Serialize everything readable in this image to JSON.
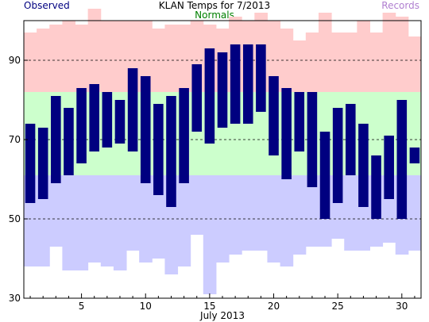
{
  "chart_data": {
    "type": "bar",
    "title": "KLAN Temps for 7/2013",
    "legend": [
      {
        "label": "Observed",
        "color": "#000080",
        "position": "top-left"
      },
      {
        "label": "Normals",
        "color": "#008000",
        "position": "top-center"
      },
      {
        "label": "Records",
        "color": "#b07fd0",
        "position": "top-right"
      }
    ],
    "xlabel": "July 2013",
    "ylabel": "",
    "x_ticks_labeled": [
      5,
      10,
      15,
      20,
      25,
      30
    ],
    "y_ticks": [
      30,
      50,
      70,
      90
    ],
    "ylim": [
      30,
      100
    ],
    "xlim": [
      0.5,
      31.5
    ],
    "grid_y": [
      50,
      70,
      90
    ],
    "normals_band": {
      "low": 61,
      "high": 82,
      "color": "#ccffcc"
    },
    "record_highs": [
      97,
      98,
      99,
      100,
      99,
      103,
      100,
      100,
      100,
      100,
      98,
      99,
      99,
      100,
      99,
      98,
      101,
      100,
      102,
      100,
      98,
      95,
      97,
      102,
      97,
      97,
      100,
      97,
      102,
      101,
      96
    ],
    "record_lows": [
      38,
      38,
      43,
      37,
      37,
      39,
      38,
      37,
      42,
      39,
      40,
      36,
      38,
      46,
      31,
      39,
      41,
      42,
      42,
      39,
      38,
      41,
      43,
      43,
      45,
      42,
      42,
      43,
      44,
      41,
      42
    ],
    "record_high_color": "#ffcccc",
    "record_low_color": "#ccccff",
    "observed_color": "#000080",
    "series": [
      {
        "name": "Observed",
        "days": [
          1,
          2,
          3,
          4,
          5,
          6,
          7,
          8,
          9,
          10,
          11,
          12,
          13,
          14,
          15,
          16,
          17,
          18,
          19,
          20,
          21,
          22,
          23,
          24,
          25,
          26,
          27,
          28,
          29,
          30,
          31
        ],
        "highs": [
          74,
          73,
          81,
          78,
          83,
          84,
          82,
          80,
          88,
          86,
          79,
          81,
          83,
          89,
          93,
          92,
          94,
          94,
          94,
          86,
          83,
          82,
          82,
          72,
          78,
          79,
          74,
          66,
          71,
          80,
          68
        ],
        "lows": [
          54,
          55,
          59,
          61,
          64,
          67,
          68,
          69,
          67,
          59,
          56,
          53,
          59,
          72,
          69,
          73,
          74,
          74,
          77,
          66,
          60,
          67,
          58,
          50,
          54,
          61,
          53,
          50,
          55,
          50,
          64
        ]
      }
    ]
  }
}
